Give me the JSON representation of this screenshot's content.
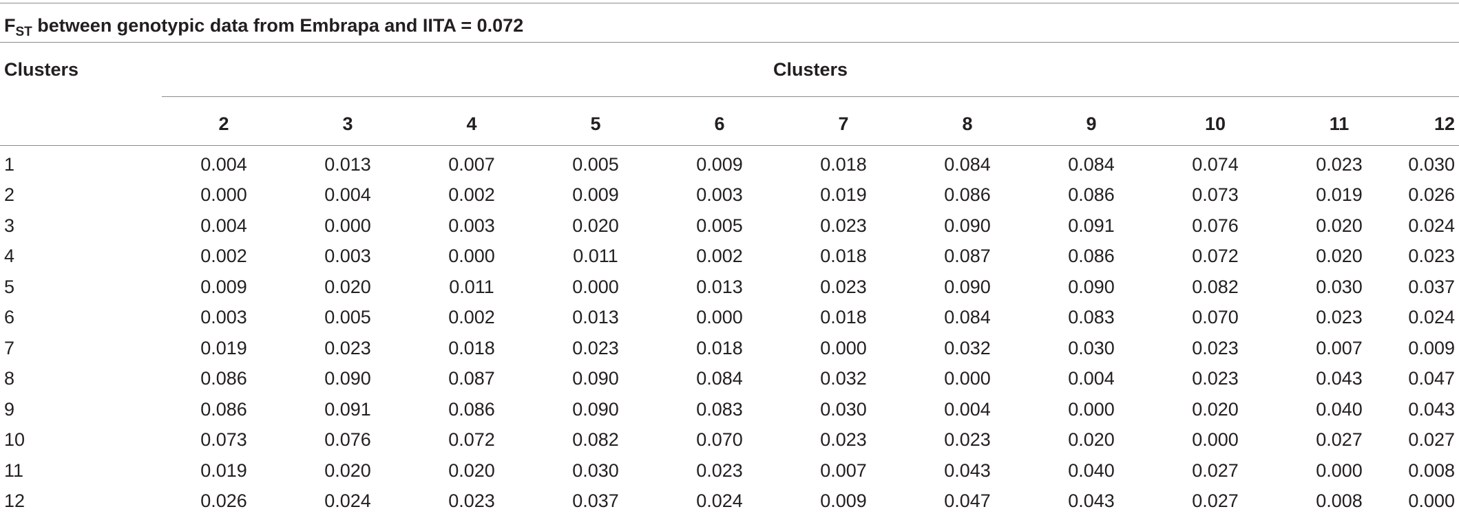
{
  "title": {
    "prefix": "F",
    "subscript": "ST",
    "suffix": " between genotypic data from Embrapa and IITA = 0.072"
  },
  "stub_header": "Clusters",
  "span_header": "Clusters",
  "columns": [
    "2",
    "3",
    "4",
    "5",
    "6",
    "7",
    "8",
    "9",
    "10",
    "11",
    "12"
  ],
  "rows": [
    {
      "label": "1",
      "values": [
        "0.004",
        "0.013",
        "0.007",
        "0.005",
        "0.009",
        "0.018",
        "0.084",
        "0.084",
        "0.074",
        "0.023",
        "0.030"
      ]
    },
    {
      "label": "2",
      "values": [
        "0.000",
        "0.004",
        "0.002",
        "0.009",
        "0.003",
        "0.019",
        "0.086",
        "0.086",
        "0.073",
        "0.019",
        "0.026"
      ]
    },
    {
      "label": "3",
      "values": [
        "0.004",
        "0.000",
        "0.003",
        "0.020",
        "0.005",
        "0.023",
        "0.090",
        "0.091",
        "0.076",
        "0.020",
        "0.024"
      ]
    },
    {
      "label": "4",
      "values": [
        "0.002",
        "0.003",
        "0.000",
        "0.011",
        "0.002",
        "0.018",
        "0.087",
        "0.086",
        "0.072",
        "0.020",
        "0.023"
      ]
    },
    {
      "label": "5",
      "values": [
        "0.009",
        "0.020",
        "0.011",
        "0.000",
        "0.013",
        "0.023",
        "0.090",
        "0.090",
        "0.082",
        "0.030",
        "0.037"
      ]
    },
    {
      "label": "6",
      "values": [
        "0.003",
        "0.005",
        "0.002",
        "0.013",
        "0.000",
        "0.018",
        "0.084",
        "0.083",
        "0.070",
        "0.023",
        "0.024"
      ]
    },
    {
      "label": "7",
      "values": [
        "0.019",
        "0.023",
        "0.018",
        "0.023",
        "0.018",
        "0.000",
        "0.032",
        "0.030",
        "0.023",
        "0.007",
        "0.009"
      ]
    },
    {
      "label": "8",
      "values": [
        "0.086",
        "0.090",
        "0.087",
        "0.090",
        "0.084",
        "0.032",
        "0.000",
        "0.004",
        "0.023",
        "0.043",
        "0.047"
      ]
    },
    {
      "label": "9",
      "values": [
        "0.086",
        "0.091",
        "0.086",
        "0.090",
        "0.083",
        "0.030",
        "0.004",
        "0.000",
        "0.020",
        "0.040",
        "0.043"
      ]
    },
    {
      "label": "10",
      "values": [
        "0.073",
        "0.076",
        "0.072",
        "0.082",
        "0.070",
        "0.023",
        "0.023",
        "0.020",
        "0.000",
        "0.027",
        "0.027"
      ]
    },
    {
      "label": "11",
      "values": [
        "0.019",
        "0.020",
        "0.020",
        "0.030",
        "0.023",
        "0.007",
        "0.043",
        "0.040",
        "0.027",
        "0.000",
        "0.008"
      ]
    },
    {
      "label": "12",
      "values": [
        "0.026",
        "0.024",
        "0.023",
        "0.037",
        "0.024",
        "0.009",
        "0.047",
        "0.043",
        "0.027",
        "0.008",
        "0.000"
      ]
    }
  ]
}
